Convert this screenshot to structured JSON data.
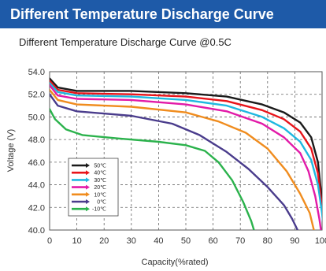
{
  "header": {
    "banner_title": "Different Temperature Discharge Curve"
  },
  "chart_data": {
    "type": "line",
    "title": "Different Temperature Discharge Curve @0.5C",
    "xlabel": "Capacity(%rated)",
    "ylabel": "Voltage (V)",
    "xlim": [
      0,
      100
    ],
    "ylim": [
      40.0,
      54.0
    ],
    "x_ticks": [
      "0",
      "10",
      "20",
      "30",
      "40",
      "50",
      "60",
      "70",
      "80",
      "90",
      "100"
    ],
    "y_ticks": [
      "40.0",
      "42.0",
      "44.0",
      "46.0",
      "48.0",
      "50.0",
      "52.0",
      "54.0"
    ],
    "grid": true,
    "legend_position": "bottom-left",
    "series": [
      {
        "name": "50℃",
        "color": "#1a1a1a",
        "points": [
          [
            0,
            53.4
          ],
          [
            3,
            52.6
          ],
          [
            10,
            52.3
          ],
          [
            30,
            52.3
          ],
          [
            50,
            52.1
          ],
          [
            65,
            51.8
          ],
          [
            78,
            51.1
          ],
          [
            86,
            50.4
          ],
          [
            92,
            49.5
          ],
          [
            96,
            48.2
          ],
          [
            98.5,
            46.0
          ],
          [
            100,
            42.5
          ],
          [
            101.5,
            40.0
          ]
        ]
      },
      {
        "name": "40℃",
        "color": "#e8141a",
        "points": [
          [
            0,
            53.2
          ],
          [
            3,
            52.4
          ],
          [
            10,
            52.1
          ],
          [
            30,
            52.0
          ],
          [
            50,
            51.8
          ],
          [
            65,
            51.4
          ],
          [
            78,
            50.6
          ],
          [
            86,
            49.8
          ],
          [
            92,
            48.7
          ],
          [
            96,
            47.2
          ],
          [
            98.5,
            45.0
          ],
          [
            100,
            42.0
          ],
          [
            101,
            40.0
          ]
        ]
      },
      {
        "name": "30℃",
        "color": "#1fb8e0",
        "points": [
          [
            0,
            53.0
          ],
          [
            3,
            52.2
          ],
          [
            10,
            51.9
          ],
          [
            30,
            51.8
          ],
          [
            50,
            51.5
          ],
          [
            65,
            51.0
          ],
          [
            78,
            50.0
          ],
          [
            86,
            49.0
          ],
          [
            92,
            47.8
          ],
          [
            96,
            46.2
          ],
          [
            98.5,
            44.0
          ],
          [
            100,
            41.5
          ],
          [
            100.6,
            40.0
          ]
        ]
      },
      {
        "name": "20℃",
        "color": "#e21aa8",
        "points": [
          [
            0,
            52.8
          ],
          [
            3,
            51.9
          ],
          [
            10,
            51.6
          ],
          [
            30,
            51.5
          ],
          [
            50,
            51.1
          ],
          [
            65,
            50.5
          ],
          [
            78,
            49.4
          ],
          [
            86,
            48.2
          ],
          [
            92,
            46.8
          ],
          [
            95,
            45.2
          ],
          [
            97.5,
            43.0
          ],
          [
            99,
            41.0
          ],
          [
            99.6,
            40.0
          ]
        ]
      },
      {
        "name": "10℃",
        "color": "#f08c1e",
        "points": [
          [
            0,
            52.4
          ],
          [
            3,
            51.5
          ],
          [
            10,
            51.1
          ],
          [
            30,
            50.9
          ],
          [
            50,
            50.4
          ],
          [
            62,
            49.6
          ],
          [
            72,
            48.6
          ],
          [
            80,
            47.2
          ],
          [
            87,
            45.2
          ],
          [
            92,
            43.2
          ],
          [
            95.5,
            41.5
          ],
          [
            97,
            40.0
          ]
        ]
      },
      {
        "name": "0℃",
        "color": "#4a3c8c",
        "points": [
          [
            0,
            52.0
          ],
          [
            3,
            51.0
          ],
          [
            10,
            50.5
          ],
          [
            30,
            50.1
          ],
          [
            45,
            49.4
          ],
          [
            55,
            48.4
          ],
          [
            65,
            46.9
          ],
          [
            73,
            45.4
          ],
          [
            80,
            43.8
          ],
          [
            86,
            42.2
          ],
          [
            89,
            41.0
          ],
          [
            91,
            40.0
          ]
        ]
      },
      {
        "name": "-10℃",
        "color": "#2bb24c",
        "points": [
          [
            0,
            50.7
          ],
          [
            2,
            49.8
          ],
          [
            6,
            48.9
          ],
          [
            12,
            48.4
          ],
          [
            25,
            48.1
          ],
          [
            40,
            47.8
          ],
          [
            50,
            47.5
          ],
          [
            57,
            47.0
          ],
          [
            62,
            46.0
          ],
          [
            67,
            44.4
          ],
          [
            71,
            42.5
          ],
          [
            74,
            40.8
          ],
          [
            75,
            40.0
          ]
        ]
      }
    ]
  }
}
